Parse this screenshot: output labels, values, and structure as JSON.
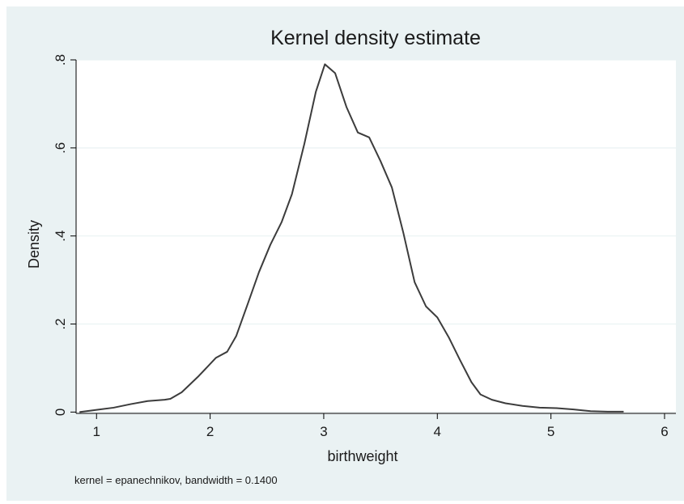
{
  "chart_data": {
    "type": "line",
    "title": "Kernel density estimate",
    "xlabel": "birthweight",
    "ylabel": "Density",
    "note": "kernel = epanechnikov, bandwidth = 0.1400",
    "xlim": [
      0.82,
      6.1
    ],
    "ylim": [
      -0.003,
      0.8
    ],
    "xticks": [
      1,
      2,
      3,
      4,
      5,
      6
    ],
    "xtick_labels": [
      "1",
      "2",
      "3",
      "4",
      "5",
      "6"
    ],
    "yticks": [
      0,
      0.2,
      0.4,
      0.6,
      0.8
    ],
    "ytick_labels": [
      "0",
      ".2",
      ".4",
      ".6",
      ".8"
    ],
    "grid": true,
    "legend": "none",
    "colors": {
      "line": "#3c3c3c",
      "plot_bg": "#ffffff",
      "figure_bg": "#eaf2f3",
      "grid": "#eaf2f3"
    },
    "series": [
      {
        "x": [
          0.85,
          1.0,
          1.15,
          1.3,
          1.45,
          1.6,
          1.65,
          1.75,
          1.9,
          2.05,
          2.15,
          2.23,
          2.33,
          2.43,
          2.53,
          2.63,
          2.72,
          2.83,
          2.93,
          3.01,
          3.1,
          3.2,
          3.3,
          3.4,
          3.5,
          3.6,
          3.7,
          3.8,
          3.9,
          4.0,
          4.1,
          4.2,
          4.3,
          4.38,
          4.48,
          4.6,
          4.75,
          4.9,
          5.05,
          5.2,
          5.35,
          5.5,
          5.64
        ],
        "y": [
          0.0,
          0.005,
          0.01,
          0.018,
          0.025,
          0.028,
          0.03,
          0.045,
          0.082,
          0.123,
          0.137,
          0.173,
          0.245,
          0.318,
          0.38,
          0.432,
          0.495,
          0.61,
          0.727,
          0.79,
          0.77,
          0.693,
          0.635,
          0.624,
          0.57,
          0.51,
          0.408,
          0.295,
          0.24,
          0.215,
          0.17,
          0.118,
          0.068,
          0.04,
          0.028,
          0.02,
          0.014,
          0.01,
          0.009,
          0.006,
          0.002,
          0.001,
          0.001
        ]
      }
    ]
  }
}
